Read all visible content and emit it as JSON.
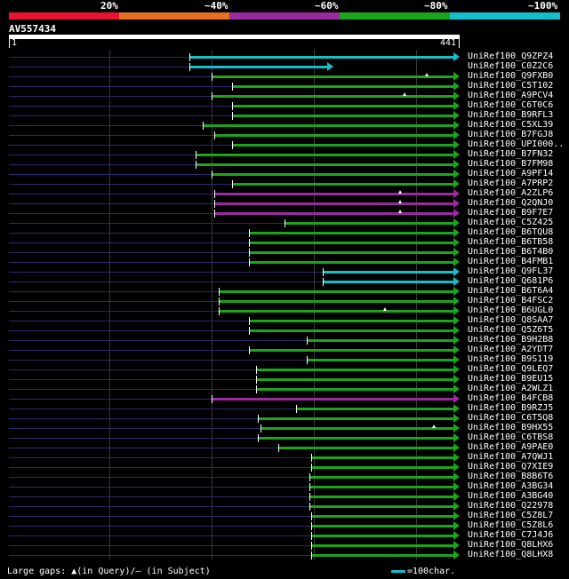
{
  "identity_scale": {
    "labels": [
      "20%",
      "~40%",
      "~60%",
      "~80%",
      "~100%"
    ],
    "colors": [
      "#e8142d",
      "#e5711e",
      "#9a2aa0",
      "#1aa51a",
      "#13bfcb"
    ]
  },
  "query": {
    "id": "AV557434",
    "start": "1",
    "end": "441"
  },
  "hits": [
    {
      "id": "UniRef100_Q9ZPZ4",
      "start": 0.405,
      "end": 1.0,
      "color": "#13bfcb",
      "gaps": []
    },
    {
      "id": "UniRef100_C0Z2C6",
      "start": 0.405,
      "end": 0.715,
      "color": "#13bfcb",
      "gaps": []
    },
    {
      "id": "UniRef100_Q9FXB0",
      "start": 0.455,
      "end": 1.0,
      "color": "#1aa51a",
      "gaps": [
        0.94
      ]
    },
    {
      "id": "UniRef100_C5T102",
      "start": 0.502,
      "end": 1.0,
      "color": "#1aa51a",
      "gaps": []
    },
    {
      "id": "UniRef100_A9PCV4",
      "start": 0.455,
      "end": 1.0,
      "color": "#1aa51a",
      "gaps": [
        0.89
      ]
    },
    {
      "id": "UniRef100_C6T0C6",
      "start": 0.502,
      "end": 1.0,
      "color": "#1aa51a",
      "gaps": []
    },
    {
      "id": "UniRef100_B9RFL3",
      "start": 0.502,
      "end": 1.0,
      "color": "#1aa51a",
      "gaps": []
    },
    {
      "id": "UniRef100_C5XL39",
      "start": 0.435,
      "end": 1.0,
      "color": "#1aa51a",
      "gaps": []
    },
    {
      "id": "UniRef100_B7FGJ8",
      "start": 0.462,
      "end": 1.0,
      "color": "#1aa51a",
      "gaps": []
    },
    {
      "id": "UniRef100_UPI000..",
      "start": 0.502,
      "end": 1.0,
      "color": "#1aa51a",
      "gaps": []
    },
    {
      "id": "UniRef100_B7FN32",
      "start": 0.42,
      "end": 1.0,
      "color": "#1aa51a",
      "gaps": []
    },
    {
      "id": "UniRef100_B7FM98",
      "start": 0.42,
      "end": 1.0,
      "color": "#1aa51a",
      "gaps": []
    },
    {
      "id": "UniRef100_A9PF14",
      "start": 0.455,
      "end": 1.0,
      "color": "#1aa51a",
      "gaps": []
    },
    {
      "id": "UniRef100_A7PRP2",
      "start": 0.502,
      "end": 1.0,
      "color": "#1aa51a",
      "gaps": []
    },
    {
      "id": "UniRef100_A2ZLP6",
      "start": 0.462,
      "end": 1.0,
      "color": "#9a2aa0",
      "gaps": [
        0.88
      ]
    },
    {
      "id": "UniRef100_Q2QNJ0",
      "start": 0.462,
      "end": 1.0,
      "color": "#9a2aa0",
      "gaps": [
        0.88
      ]
    },
    {
      "id": "UniRef100_B9F7E7",
      "start": 0.462,
      "end": 1.0,
      "color": "#9a2aa0",
      "gaps": [
        0.88
      ]
    },
    {
      "id": "UniRef100_C5Z425",
      "start": 0.62,
      "end": 1.0,
      "color": "#1aa51a",
      "gaps": []
    },
    {
      "id": "UniRef100_B6TQU8",
      "start": 0.54,
      "end": 1.0,
      "color": "#1aa51a",
      "gaps": []
    },
    {
      "id": "UniRef100_B6TB58",
      "start": 0.54,
      "end": 1.0,
      "color": "#1aa51a",
      "gaps": []
    },
    {
      "id": "UniRef100_B6T4B0",
      "start": 0.54,
      "end": 1.0,
      "color": "#1aa51a",
      "gaps": []
    },
    {
      "id": "UniRef100_B4FMB1",
      "start": 0.54,
      "end": 1.0,
      "color": "#1aa51a",
      "gaps": []
    },
    {
      "id": "UniRef100_Q9FL37",
      "start": 0.705,
      "end": 1.0,
      "color": "#13bfcb",
      "gaps": []
    },
    {
      "id": "UniRef100_Q681P6",
      "start": 0.705,
      "end": 1.0,
      "color": "#13bfcb",
      "gaps": []
    },
    {
      "id": "UniRef100_B6T6A4",
      "start": 0.472,
      "end": 1.0,
      "color": "#1aa51a",
      "gaps": []
    },
    {
      "id": "UniRef100_B4FSC2",
      "start": 0.472,
      "end": 1.0,
      "color": "#1aa51a",
      "gaps": []
    },
    {
      "id": "UniRef100_B6UGL0",
      "start": 0.472,
      "end": 1.0,
      "color": "#1aa51a",
      "gaps": [
        0.845
      ]
    },
    {
      "id": "UniRef100_Q8SAA7",
      "start": 0.54,
      "end": 1.0,
      "color": "#1aa51a",
      "gaps": []
    },
    {
      "id": "UniRef100_Q5Z6T5",
      "start": 0.54,
      "end": 1.0,
      "color": "#1aa51a",
      "gaps": []
    },
    {
      "id": "UniRef100_B9H2B8",
      "start": 0.67,
      "end": 1.0,
      "color": "#1aa51a",
      "gaps": []
    },
    {
      "id": "UniRef100_A2YDT7",
      "start": 0.54,
      "end": 1.0,
      "color": "#1aa51a",
      "gaps": []
    },
    {
      "id": "UniRef100_B9S119",
      "start": 0.67,
      "end": 1.0,
      "color": "#1aa51a",
      "gaps": []
    },
    {
      "id": "UniRef100_Q9LEQ7",
      "start": 0.555,
      "end": 1.0,
      "color": "#1aa51a",
      "gaps": []
    },
    {
      "id": "UniRef100_B9EU15",
      "start": 0.555,
      "end": 1.0,
      "color": "#1aa51a",
      "gaps": []
    },
    {
      "id": "UniRef100_A2WLZ1",
      "start": 0.555,
      "end": 1.0,
      "color": "#1aa51a",
      "gaps": []
    },
    {
      "id": "UniRef100_B4FCB8",
      "start": 0.455,
      "end": 1.0,
      "color": "#9a2aa0",
      "gaps": []
    },
    {
      "id": "UniRef100_B9RZJ5",
      "start": 0.645,
      "end": 1.0,
      "color": "#1aa51a",
      "gaps": []
    },
    {
      "id": "UniRef100_C6T5Q8",
      "start": 0.56,
      "end": 1.0,
      "color": "#1aa51a",
      "gaps": []
    },
    {
      "id": "UniRef100_B9HX55",
      "start": 0.565,
      "end": 1.0,
      "color": "#1aa51a",
      "gaps": [
        0.955
      ]
    },
    {
      "id": "UniRef100_C6TBS8",
      "start": 0.56,
      "end": 1.0,
      "color": "#1aa51a",
      "gaps": []
    },
    {
      "id": "UniRef100_A9PAE0",
      "start": 0.605,
      "end": 1.0,
      "color": "#1aa51a",
      "gaps": []
    },
    {
      "id": "UniRef100_A7QWJ1",
      "start": 0.68,
      "end": 1.0,
      "color": "#1aa51a",
      "gaps": []
    },
    {
      "id": "UniRef100_Q7XIE9",
      "start": 0.68,
      "end": 1.0,
      "color": "#1aa51a",
      "gaps": []
    },
    {
      "id": "UniRef100_B8B6T6",
      "start": 0.675,
      "end": 1.0,
      "color": "#1aa51a",
      "gaps": []
    },
    {
      "id": "UniRef100_A3BG34",
      "start": 0.675,
      "end": 1.0,
      "color": "#1aa51a",
      "gaps": []
    },
    {
      "id": "UniRef100_A3BG40",
      "start": 0.675,
      "end": 1.0,
      "color": "#1aa51a",
      "gaps": []
    },
    {
      "id": "UniRef100_Q22978",
      "start": 0.675,
      "end": 1.0,
      "color": "#1aa51a",
      "gaps": []
    },
    {
      "id": "UniRef100_C5Z8L7",
      "start": 0.68,
      "end": 1.0,
      "color": "#1aa51a",
      "gaps": []
    },
    {
      "id": "UniRef100_C5Z8L6",
      "start": 0.68,
      "end": 1.0,
      "color": "#1aa51a",
      "gaps": []
    },
    {
      "id": "UniRef100_C7J4J6",
      "start": 0.68,
      "end": 1.0,
      "color": "#1aa51a",
      "gaps": []
    },
    {
      "id": "UniRef100_Q8LHX6",
      "start": 0.68,
      "end": 1.0,
      "color": "#1aa51a",
      "gaps": []
    },
    {
      "id": "UniRef100_Q8LHX8",
      "start": 0.68,
      "end": 1.0,
      "color": "#1aa51a",
      "gaps": []
    }
  ],
  "footer": {
    "gaps_label": "Large gaps: ▲(in Query)/— (in Subject)",
    "scale_label": "=100char."
  }
}
